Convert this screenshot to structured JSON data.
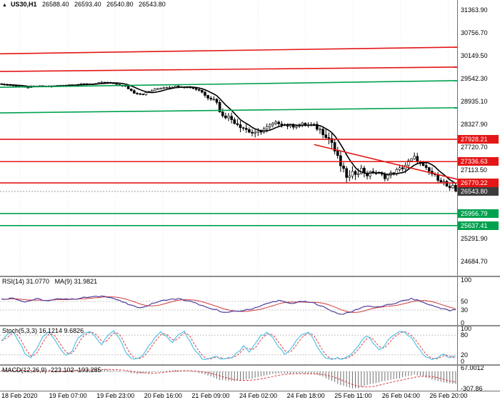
{
  "window": {
    "symbol_header": {
      "icon": "▲",
      "symbol": "US30,H1",
      "open": "26588.40",
      "high": "26593.40",
      "low": "26540.80",
      "close": "26543.80"
    }
  },
  "colors": {
    "background": "#ffffff",
    "resistance": "#e41616",
    "support": "#00a14e",
    "candle": "#000000",
    "candle_up": "#ffffff",
    "ma": "#000000",
    "price_badge": "#3c3c3c",
    "price_line": "#9a9a9a",
    "rsi_line": "#4f3e9e",
    "rsi_ma": "#d23a3a",
    "stoch_k": "#53c1e8",
    "stoch_d": "#dc3a3a",
    "macd_hist": "#6e6e6e",
    "macd_signal": "#dc3a3a",
    "grid": "#c4c4c4",
    "grid_light": "#e3e3e3",
    "separator": "#8c8c8c",
    "text": "#000000"
  },
  "axes": {
    "price_labels": [
      "31363.90",
      "30756.70",
      "30149.50",
      "29542.30",
      "28935.10",
      "28327.90",
      "27720.70",
      "27113.50",
      "26506.30",
      "25899.10",
      "25291.90",
      "24684.70"
    ],
    "time_labels": [
      "18 Feb 2020",
      "19 Feb 07:00",
      "19 Feb 23:00",
      "20 Feb 16:00",
      "21 Feb 09:00",
      "24 Feb 02:00",
      "24 Feb 18:00",
      "25 Feb 11:00",
      "26 Feb 04:00",
      "26 Feb 20:00"
    ]
  },
  "panels": {
    "main": {
      "title": "US30,H1"
    },
    "rsi": {
      "header_main": "RSI(14) 31.0770",
      "header_ma": "MA(9) 31.9821"
    },
    "stoch": {
      "header": "Stoch(5,3,3) 16.1214 9.6826"
    },
    "macd": {
      "header": "MACD(12,26,9) -223.102 -193.285"
    }
  },
  "chart_data": [
    {
      "type": "candlestick",
      "title": "US30 H1",
      "x_tick_labels": [
        "18 Feb 2020",
        "19 Feb 07:00",
        "19 Feb 23:00",
        "20 Feb 16:00",
        "21 Feb 09:00",
        "24 Feb 02:00",
        "24 Feb 18:00",
        "25 Feb 11:00",
        "26 Feb 04:00",
        "26 Feb 20:00"
      ],
      "ylim": [
        24305,
        31630
      ],
      "bars": 155,
      "ma_period": 8,
      "current_price": {
        "price": 26543.8,
        "label": "26543.80"
      },
      "ohlc_header": {
        "open": 26588.4,
        "high": 26593.4,
        "low": 26540.8,
        "close": 26543.8
      },
      "close_anchors": [
        [
          0,
          29390
        ],
        [
          4,
          29360
        ],
        [
          8,
          29300
        ],
        [
          12,
          29345
        ],
        [
          16,
          29330
        ],
        [
          20,
          29365
        ],
        [
          24,
          29385
        ],
        [
          28,
          29395
        ],
        [
          32,
          29410
        ],
        [
          35,
          29445
        ],
        [
          38,
          29410
        ],
        [
          42,
          29330
        ],
        [
          45,
          29170
        ],
        [
          48,
          29130
        ],
        [
          52,
          29260
        ],
        [
          56,
          29320
        ],
        [
          60,
          29340
        ],
        [
          64,
          29310
        ],
        [
          67,
          29240
        ],
        [
          70,
          29060
        ],
        [
          73,
          28950
        ],
        [
          74,
          28630
        ],
        [
          76,
          28560
        ],
        [
          78,
          28460
        ],
        [
          80,
          28350
        ],
        [
          82,
          28240
        ],
        [
          84,
          28140
        ],
        [
          86,
          28060
        ],
        [
          88,
          28160
        ],
        [
          90,
          28240
        ],
        [
          92,
          28330
        ],
        [
          94,
          28370
        ],
        [
          96,
          28320
        ],
        [
          98,
          28270
        ],
        [
          100,
          28300
        ],
        [
          102,
          28330
        ],
        [
          104,
          28310
        ],
        [
          106,
          28280
        ],
        [
          108,
          28180
        ],
        [
          110,
          28050
        ],
        [
          112,
          27850
        ],
        [
          113,
          27620
        ],
        [
          114,
          27420
        ],
        [
          115,
          27240
        ],
        [
          116,
          27060
        ],
        [
          117,
          26960
        ],
        [
          118,
          26900
        ],
        [
          119,
          26990
        ],
        [
          120,
          27060
        ],
        [
          122,
          27130
        ],
        [
          124,
          26990
        ],
        [
          126,
          27060
        ],
        [
          128,
          27010
        ],
        [
          130,
          26930
        ],
        [
          132,
          27010
        ],
        [
          134,
          27090
        ],
        [
          136,
          27180
        ],
        [
          138,
          27320
        ],
        [
          140,
          27430
        ],
        [
          141,
          27380
        ],
        [
          142,
          27260
        ],
        [
          144,
          27130
        ],
        [
          146,
          27010
        ],
        [
          148,
          26890
        ],
        [
          150,
          26790
        ],
        [
          151,
          26680
        ],
        [
          152,
          26600
        ],
        [
          153,
          26660
        ],
        [
          154,
          26543.8
        ]
      ],
      "volatility_anchors": [
        [
          0,
          40
        ],
        [
          40,
          45
        ],
        [
          44,
          70
        ],
        [
          50,
          50
        ],
        [
          62,
          55
        ],
        [
          70,
          110
        ],
        [
          74,
          190
        ],
        [
          84,
          210
        ],
        [
          92,
          130
        ],
        [
          104,
          110
        ],
        [
          110,
          230
        ],
        [
          118,
          280
        ],
        [
          124,
          170
        ],
        [
          132,
          140
        ],
        [
          138,
          190
        ],
        [
          144,
          160
        ],
        [
          154,
          150
        ]
      ],
      "levels": [
        {
          "price": 27928.21,
          "label": "27928.21",
          "color": "resistance"
        },
        {
          "price": 27336.63,
          "label": "27336.63",
          "color": "resistance"
        },
        {
          "price": 26770.22,
          "label": "26770.22",
          "color": "resistance"
        },
        {
          "price": 25956.79,
          "label": "25956.79",
          "color": "support"
        },
        {
          "price": 25637.41,
          "label": "25637.41",
          "color": "support"
        }
      ],
      "trendlines": [
        {
          "from_bar": -2,
          "from_price": 30200,
          "to_bar": 157,
          "to_price": 30380,
          "color": "resistance"
        },
        {
          "from_bar": -2,
          "from_price": 29730,
          "to_bar": 157,
          "to_price": 29850,
          "color": "resistance"
        },
        {
          "from_bar": -2,
          "from_price": 29310,
          "to_bar": 157,
          "to_price": 29490,
          "color": "support"
        },
        {
          "from_bar": -2,
          "from_price": 28630,
          "to_bar": 157,
          "to_price": 28770,
          "color": "support"
        },
        {
          "from_bar": 106,
          "from_price": 27790,
          "to_bar": 157,
          "to_price": 26820,
          "color": "resistance"
        }
      ]
    },
    {
      "type": "line",
      "name": "RSI(14)",
      "value": 31.077,
      "ma_name": "MA(9)",
      "ma_value": 31.9821,
      "ylim": [
        0,
        100
      ],
      "axis_labels": [
        "100",
        "50",
        "30",
        "0"
      ],
      "dashed_levels": [
        50,
        30
      ],
      "anchors": [
        [
          0,
          55
        ],
        [
          4,
          58
        ],
        [
          8,
          49
        ],
        [
          12,
          56
        ],
        [
          16,
          51
        ],
        [
          20,
          57
        ],
        [
          24,
          55
        ],
        [
          28,
          59
        ],
        [
          32,
          61
        ],
        [
          35,
          63
        ],
        [
          38,
          57
        ],
        [
          42,
          46
        ],
        [
          45,
          38
        ],
        [
          48,
          36
        ],
        [
          52,
          47
        ],
        [
          56,
          54
        ],
        [
          60,
          56
        ],
        [
          64,
          50
        ],
        [
          67,
          43
        ],
        [
          70,
          34
        ],
        [
          73,
          30
        ],
        [
          76,
          24
        ],
        [
          80,
          27
        ],
        [
          84,
          31
        ],
        [
          88,
          40
        ],
        [
          92,
          49
        ],
        [
          94,
          52
        ],
        [
          98,
          45
        ],
        [
          102,
          50
        ],
        [
          106,
          46
        ],
        [
          108,
          41
        ],
        [
          110,
          34
        ],
        [
          113,
          25
        ],
        [
          115,
          20
        ],
        [
          118,
          24
        ],
        [
          121,
          33
        ],
        [
          124,
          40
        ],
        [
          127,
          36
        ],
        [
          130,
          40
        ],
        [
          133,
          45
        ],
        [
          136,
          51
        ],
        [
          139,
          56
        ],
        [
          141,
          53
        ],
        [
          144,
          45
        ],
        [
          147,
          38
        ],
        [
          150,
          33
        ],
        [
          152,
          28
        ],
        [
          154,
          31.08
        ]
      ]
    },
    {
      "type": "line",
      "name": "Stochastic(5,3,3)",
      "k_value": 16.1214,
      "d_value": 9.6826,
      "ylim": [
        0,
        100
      ],
      "axis_labels": [
        "100",
        "80",
        "20",
        "0"
      ],
      "dashed_levels": [
        80,
        20
      ],
      "k_anchors": [
        [
          0,
          60
        ],
        [
          2,
          85
        ],
        [
          4,
          92
        ],
        [
          6,
          60
        ],
        [
          8,
          25
        ],
        [
          10,
          14
        ],
        [
          12,
          40
        ],
        [
          14,
          76
        ],
        [
          16,
          90
        ],
        [
          18,
          70
        ],
        [
          20,
          38
        ],
        [
          22,
          18
        ],
        [
          24,
          35
        ],
        [
          26,
          72
        ],
        [
          28,
          88
        ],
        [
          30,
          92
        ],
        [
          32,
          74
        ],
        [
          34,
          48
        ],
        [
          36,
          80
        ],
        [
          38,
          92
        ],
        [
          40,
          68
        ],
        [
          42,
          32
        ],
        [
          44,
          10
        ],
        [
          46,
          7
        ],
        [
          48,
          22
        ],
        [
          50,
          46
        ],
        [
          52,
          72
        ],
        [
          54,
          88
        ],
        [
          56,
          76
        ],
        [
          58,
          60
        ],
        [
          60,
          82
        ],
        [
          62,
          90
        ],
        [
          64,
          58
        ],
        [
          66,
          28
        ],
        [
          68,
          10
        ],
        [
          70,
          7
        ],
        [
          72,
          16
        ],
        [
          74,
          9
        ],
        [
          76,
          7
        ],
        [
          78,
          13
        ],
        [
          80,
          26
        ],
        [
          82,
          46
        ],
        [
          84,
          30
        ],
        [
          86,
          52
        ],
        [
          88,
          78
        ],
        [
          90,
          88
        ],
        [
          92,
          70
        ],
        [
          94,
          44
        ],
        [
          96,
          24
        ],
        [
          98,
          36
        ],
        [
          100,
          62
        ],
        [
          102,
          82
        ],
        [
          104,
          90
        ],
        [
          106,
          64
        ],
        [
          108,
          32
        ],
        [
          110,
          10
        ],
        [
          112,
          5
        ],
        [
          114,
          11
        ],
        [
          116,
          7
        ],
        [
          118,
          16
        ],
        [
          120,
          36
        ],
        [
          122,
          62
        ],
        [
          124,
          78
        ],
        [
          126,
          56
        ],
        [
          128,
          34
        ],
        [
          130,
          52
        ],
        [
          132,
          72
        ],
        [
          134,
          88
        ],
        [
          136,
          93
        ],
        [
          138,
          80
        ],
        [
          140,
          58
        ],
        [
          142,
          32
        ],
        [
          144,
          13
        ],
        [
          146,
          7
        ],
        [
          148,
          12
        ],
        [
          150,
          22
        ],
        [
          152,
          9
        ],
        [
          154,
          16.12
        ]
      ]
    },
    {
      "type": "macd_histogram",
      "name": "MACD(12,26,9)",
      "macd_value": -223.102,
      "signal_value": -193.285,
      "ylim": [
        -307.86,
        67.0012
      ],
      "axis_labels": [
        "67.0012",
        "-307.86"
      ],
      "histogram_anchors": [
        [
          0,
          12
        ],
        [
          5,
          26
        ],
        [
          10,
          6
        ],
        [
          15,
          -8
        ],
        [
          20,
          16
        ],
        [
          25,
          30
        ],
        [
          30,
          36
        ],
        [
          35,
          42
        ],
        [
          40,
          12
        ],
        [
          44,
          -28
        ],
        [
          47,
          -44
        ],
        [
          51,
          -18
        ],
        [
          55,
          12
        ],
        [
          60,
          26
        ],
        [
          64,
          4
        ],
        [
          68,
          -42
        ],
        [
          71,
          -85
        ],
        [
          74,
          -150
        ],
        [
          78,
          -175
        ],
        [
          82,
          -155
        ],
        [
          86,
          -115
        ],
        [
          90,
          -62
        ],
        [
          94,
          -34
        ],
        [
          98,
          -42
        ],
        [
          102,
          -36
        ],
        [
          106,
          -52
        ],
        [
          109,
          -95
        ],
        [
          112,
          -165
        ],
        [
          115,
          -245
        ],
        [
          118,
          -292
        ],
        [
          120,
          -307.86
        ],
        [
          122,
          -282
        ],
        [
          125,
          -232
        ],
        [
          128,
          -192
        ],
        [
          131,
          -162
        ],
        [
          134,
          -132
        ],
        [
          136,
          -104
        ],
        [
          138,
          -75
        ],
        [
          140,
          -62
        ],
        [
          142,
          -82
        ],
        [
          144,
          -112
        ],
        [
          146,
          -142
        ],
        [
          148,
          -172
        ],
        [
          150,
          -202
        ],
        [
          152,
          -218
        ],
        [
          154,
          -223.102
        ]
      ]
    }
  ]
}
